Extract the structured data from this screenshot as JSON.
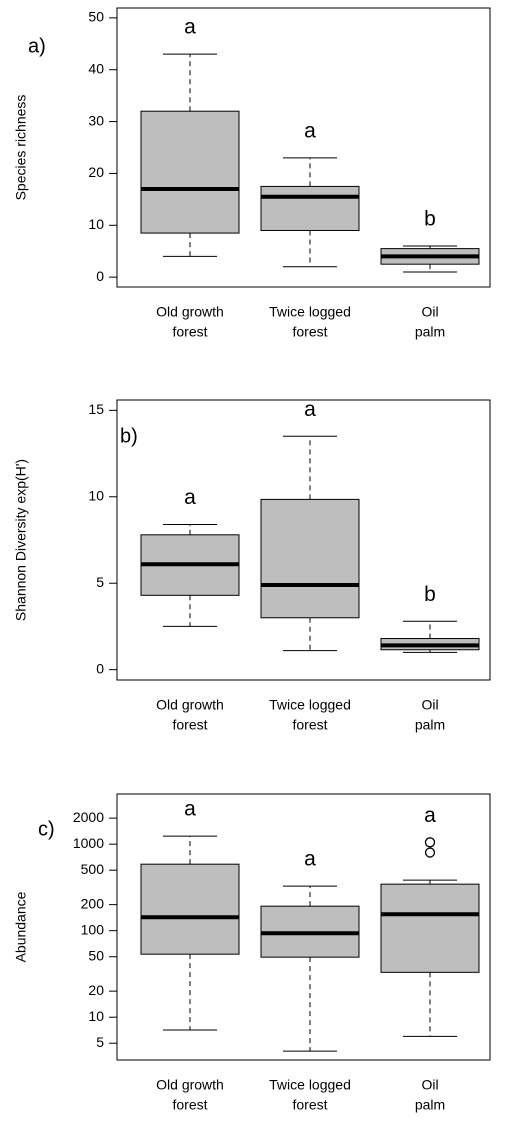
{
  "chart_data": [
    {
      "type": "box",
      "panel_label": "a)",
      "ylabel": "Species richness",
      "color": "#bebebe",
      "categories": [
        [
          "Old growth",
          "forest"
        ],
        [
          "Twice logged",
          "forest"
        ],
        [
          "Oil",
          "palm"
        ]
      ],
      "boxes": [
        {
          "min": 4,
          "q1": 8.5,
          "median": 17,
          "q3": 32,
          "max": 43,
          "outliers": []
        },
        {
          "min": 2,
          "q1": 9,
          "median": 15.5,
          "q3": 17.5,
          "max": 23,
          "outliers": []
        },
        {
          "min": 1,
          "q1": 2.5,
          "median": 4,
          "q3": 5.5,
          "max": 6,
          "outliers": []
        }
      ],
      "annotations": [
        "a",
        "a",
        "b"
      ],
      "ylim": [
        -1.9,
        51.9
      ],
      "yticks": [
        0,
        10,
        20,
        30,
        40,
        50
      ],
      "log_scale": false
    },
    {
      "type": "box",
      "panel_label": "b)",
      "ylabel": "Shannon Diversity exp(H')",
      "color": "#bebebe",
      "categories": [
        [
          "Old growth",
          "forest"
        ],
        [
          "Twice logged",
          "forest"
        ],
        [
          "Oil",
          "palm"
        ]
      ],
      "boxes": [
        {
          "min": 2.5,
          "q1": 4.3,
          "median": 6.1,
          "q3": 7.8,
          "max": 8.4,
          "outliers": []
        },
        {
          "min": 1.1,
          "q1": 3,
          "median": 4.9,
          "q3": 9.85,
          "max": 13.5,
          "outliers": []
        },
        {
          "min": 1.0,
          "q1": 1.15,
          "median": 1.4,
          "q3": 1.8,
          "max": 2.8,
          "outliers": []
        }
      ],
      "annotations": [
        "a",
        "a",
        "b"
      ],
      "ylim": [
        -0.6,
        15.6
      ],
      "yticks": [
        0,
        5,
        10,
        15
      ],
      "log_scale": false
    },
    {
      "type": "box",
      "panel_label": "c)",
      "ylabel": "Abundance",
      "color": "#bebebe",
      "categories": [
        [
          "Old growth",
          "forest"
        ],
        [
          "Twice logged",
          "forest"
        ],
        [
          "Oil",
          "palm"
        ]
      ],
      "boxes": [
        {
          "min": 7.1,
          "q1": 53.5,
          "median": 143,
          "q3": 587,
          "max": 1240,
          "outliers": []
        },
        {
          "min": 4.05,
          "q1": 49.4,
          "median": 93.5,
          "q3": 192,
          "max": 327,
          "outliers": []
        },
        {
          "min": 6.0,
          "q1": 33,
          "median": 155,
          "q3": 345,
          "max": 384,
          "outliers": [
            800,
            1050
          ]
        }
      ],
      "annotations": [
        "a",
        "a",
        "a"
      ],
      "ylim": [
        3.2,
        3800
      ],
      "yticks": [
        5,
        10,
        20,
        50,
        100,
        200,
        500,
        1000,
        2000
      ],
      "log_scale": true
    }
  ]
}
